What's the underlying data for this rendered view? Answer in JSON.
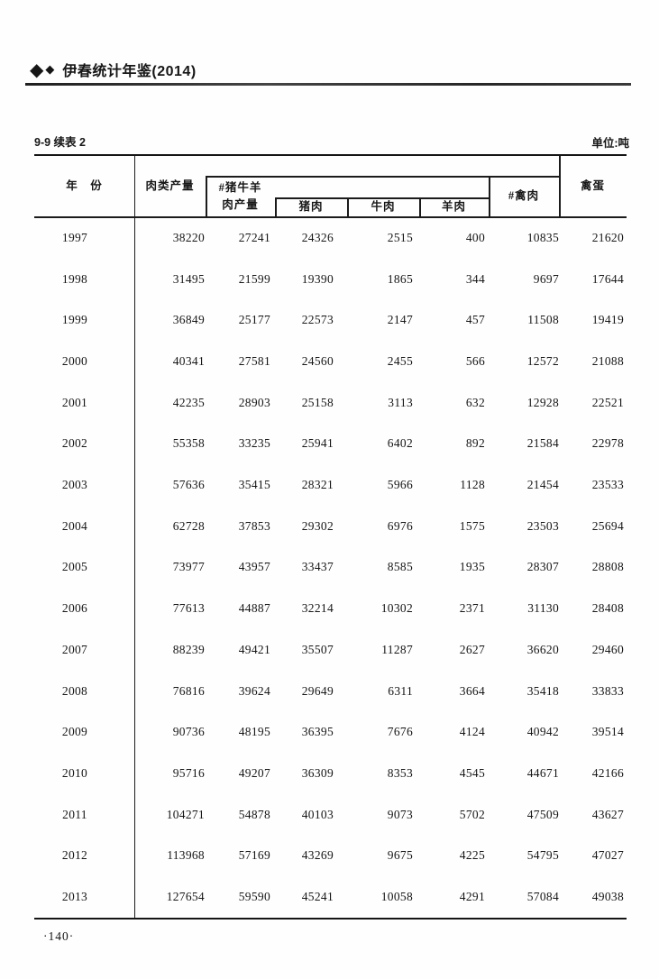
{
  "page_header": {
    "diamond_large": "◆",
    "diamond_small": "◆",
    "title": "伊春统计年鉴(2014)"
  },
  "table_meta": {
    "continuation_label": "9-9 续表 2",
    "unit_label": "单位:吨"
  },
  "table": {
    "header": {
      "year": "年　份",
      "meat_total": "肉类产量",
      "pig_cattle_sheep_line1": "#猪牛羊",
      "pig_cattle_sheep_line2": "肉产量",
      "pork": "猪肉",
      "beef": "牛肉",
      "mutton": "羊肉",
      "poultry_meat": "#禽肉",
      "eggs": "禽蛋"
    },
    "columns": [
      "年份",
      "肉类产量",
      "#猪牛羊肉产量",
      "猪肉",
      "牛肉",
      "羊肉",
      "#禽肉",
      "禽蛋"
    ],
    "rows": [
      {
        "year": "1997",
        "values": [
          38220,
          27241,
          24326,
          2515,
          400,
          10835,
          21620
        ]
      },
      {
        "year": "1998",
        "values": [
          31495,
          21599,
          19390,
          1865,
          344,
          9697,
          17644
        ]
      },
      {
        "year": "1999",
        "values": [
          36849,
          25177,
          22573,
          2147,
          457,
          11508,
          19419
        ]
      },
      {
        "year": "2000",
        "values": [
          40341,
          27581,
          24560,
          2455,
          566,
          12572,
          21088
        ]
      },
      {
        "year": "2001",
        "values": [
          42235,
          28903,
          25158,
          3113,
          632,
          12928,
          22521
        ]
      },
      {
        "year": "2002",
        "values": [
          55358,
          33235,
          25941,
          6402,
          892,
          21584,
          22978
        ]
      },
      {
        "year": "2003",
        "values": [
          57636,
          35415,
          28321,
          5966,
          1128,
          21454,
          23533
        ]
      },
      {
        "year": "2004",
        "values": [
          62728,
          37853,
          29302,
          6976,
          1575,
          23503,
          25694
        ]
      },
      {
        "year": "2005",
        "values": [
          73977,
          43957,
          33437,
          8585,
          1935,
          28307,
          28808
        ]
      },
      {
        "year": "2006",
        "values": [
          77613,
          44887,
          32214,
          10302,
          2371,
          31130,
          28408
        ]
      },
      {
        "year": "2007",
        "values": [
          88239,
          49421,
          35507,
          11287,
          2627,
          36620,
          29460
        ]
      },
      {
        "year": "2008",
        "values": [
          76816,
          39624,
          29649,
          6311,
          3664,
          35418,
          33833
        ]
      },
      {
        "year": "2009",
        "values": [
          90736,
          48195,
          36395,
          7676,
          4124,
          40942,
          39514
        ]
      },
      {
        "year": "2010",
        "values": [
          95716,
          49207,
          36309,
          8353,
          4545,
          44671,
          42166
        ]
      },
      {
        "year": "2011",
        "values": [
          104271,
          54878,
          40103,
          9073,
          5702,
          47509,
          43627
        ]
      },
      {
        "year": "2012",
        "values": [
          113968,
          57169,
          43269,
          9675,
          4225,
          54795,
          47027
        ]
      },
      {
        "year": "2013",
        "values": [
          127654,
          59590,
          45241,
          10058,
          4291,
          57084,
          49038
        ]
      }
    ]
  },
  "footer": {
    "page_number": "·140·"
  }
}
